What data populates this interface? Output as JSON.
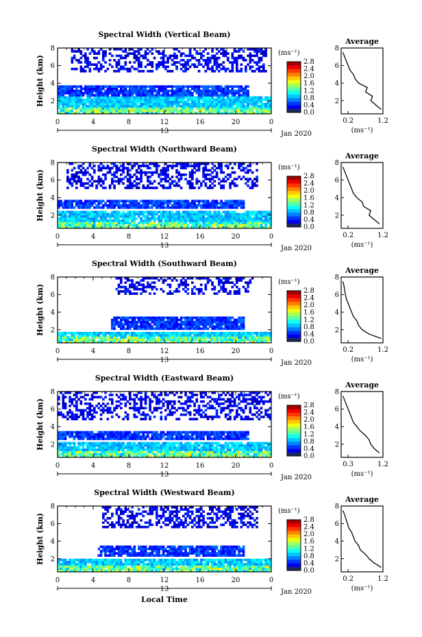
{
  "figure": {
    "xlabel": "Local Time",
    "date_label": "Jan 2020",
    "day_label": "13",
    "avg_title": "Average",
    "avg_xlabel": "(ms⁻¹)",
    "cbar_unit": "(ms⁻¹)"
  },
  "chart_data": [
    {
      "type": "heatmap",
      "title": "Spectral Width (Vertical Beam)",
      "ylabel": "Height (km)",
      "xlabel": "",
      "xlim": [
        0,
        24
      ],
      "ylim": [
        0.5,
        8
      ],
      "x_ticks": [
        "0",
        "4",
        "8",
        "12",
        "16",
        "20",
        "0"
      ],
      "y_ticks": [
        "2",
        "4",
        "6",
        "8"
      ],
      "colorbar": {
        "unit": "(ms⁻¹)",
        "range": [
          0,
          2.8
        ],
        "ticks": [
          "0.0",
          "0.4",
          "0.8",
          "1.2",
          "1.6",
          "2.0",
          "2.4",
          "2.8"
        ]
      },
      "layers": [
        {
          "name": "upper",
          "y": [
            5.2,
            8.0
          ],
          "x": [
            1.5,
            23.5
          ],
          "value": 0.3
        },
        {
          "name": "mid",
          "y": [
            2.5,
            3.8
          ],
          "x": [
            0,
            21.5
          ],
          "value": 0.5
        },
        {
          "name": "low",
          "y": [
            0.5,
            2.5
          ],
          "x": [
            0,
            24
          ],
          "value": 0.9
        }
      ],
      "profile": {
        "xlim": [
          0,
          1.2
        ],
        "xticks": [
          "0.2",
          "1.2"
        ],
        "yticks": [
          "2",
          "4",
          "6",
          "8"
        ],
        "height": [
          1.0,
          1.5,
          2.0,
          2.5,
          3.0,
          3.5,
          4.0,
          4.5,
          5.0,
          5.5,
          6.0,
          6.5,
          7.0,
          7.5
        ],
        "width": [
          1.15,
          1.0,
          0.85,
          0.9,
          0.7,
          0.75,
          0.5,
          0.4,
          0.35,
          0.25,
          0.2,
          0.15,
          0.1,
          0.05
        ]
      }
    },
    {
      "type": "heatmap",
      "title": "Spectral Width (Northward Beam)",
      "ylabel": "Height (km)",
      "xlabel": "",
      "xlim": [
        0,
        24
      ],
      "ylim": [
        0.5,
        8
      ],
      "x_ticks": [
        "0",
        "4",
        "8",
        "12",
        "16",
        "20",
        "0"
      ],
      "y_ticks": [
        "2",
        "4",
        "6",
        "8"
      ],
      "colorbar": {
        "unit": "(ms⁻¹)",
        "range": [
          0,
          2.8
        ],
        "ticks": [
          "0.0",
          "0.4",
          "0.8",
          "1.2",
          "1.6",
          "2.0",
          "2.4",
          "2.8"
        ]
      },
      "layers": [
        {
          "name": "upper",
          "y": [
            5.0,
            8.0
          ],
          "x": [
            1.0,
            22.5
          ],
          "value": 0.3
        },
        {
          "name": "mid",
          "y": [
            2.8,
            3.8
          ],
          "x": [
            0,
            21.0
          ],
          "value": 0.5
        },
        {
          "name": "low",
          "y": [
            0.5,
            2.5
          ],
          "x": [
            0,
            24
          ],
          "value": 0.9
        }
      ],
      "profile": {
        "xlim": [
          0,
          1.2
        ],
        "xticks": [
          "0.2",
          "1.2"
        ],
        "yticks": [
          "2",
          "4",
          "6",
          "8"
        ],
        "height": [
          1.0,
          1.5,
          2.0,
          2.5,
          3.0,
          3.5,
          4.0,
          4.5,
          5.0,
          5.5,
          6.0,
          6.5,
          7.0,
          7.5
        ],
        "width": [
          1.1,
          0.95,
          0.8,
          0.85,
          0.65,
          0.6,
          0.45,
          0.35,
          0.3,
          0.25,
          0.2,
          0.15,
          0.1,
          0.05
        ]
      }
    },
    {
      "type": "heatmap",
      "title": "Spectral Width (Southward Beam)",
      "ylabel": "Height (km)",
      "xlabel": "",
      "xlim": [
        0,
        24
      ],
      "ylim": [
        0.5,
        8
      ],
      "x_ticks": [
        "0",
        "4",
        "8",
        "12",
        "16",
        "20",
        "0"
      ],
      "y_ticks": [
        "2",
        "4",
        "6",
        "8"
      ],
      "colorbar": {
        "unit": "(ms⁻¹)",
        "range": [
          0,
          2.8
        ],
        "ticks": [
          "0.0",
          "0.4",
          "0.8",
          "1.2",
          "1.6",
          "2.0",
          "2.4",
          "2.8"
        ]
      },
      "layers": [
        {
          "name": "upper",
          "y": [
            6.0,
            8.0
          ],
          "x": [
            6.5,
            22.0
          ],
          "value": 0.3
        },
        {
          "name": "mid",
          "y": [
            2.0,
            3.5
          ],
          "x": [
            6.0,
            21.0
          ],
          "value": 0.5
        },
        {
          "name": "low",
          "y": [
            0.5,
            1.8
          ],
          "x": [
            0,
            24
          ],
          "value": 0.9
        }
      ],
      "profile": {
        "xlim": [
          0,
          1.2
        ],
        "xticks": [
          "0.2",
          "1.2"
        ],
        "yticks": [
          "2",
          "4",
          "6",
          "8"
        ],
        "height": [
          1.0,
          1.5,
          2.0,
          2.5,
          3.0,
          3.5,
          4.0,
          4.5,
          5.0,
          5.5,
          6.0,
          6.5,
          7.0,
          7.5
        ],
        "width": [
          1.15,
          0.8,
          0.6,
          0.5,
          0.45,
          0.35,
          0.3,
          0.25,
          0.2,
          0.15,
          0.12,
          0.1,
          0.08,
          0.05
        ]
      }
    },
    {
      "type": "heatmap",
      "title": "Spectral Width (Eastward Beam)",
      "ylabel": "Height (km)",
      "xlabel": "",
      "xlim": [
        0,
        24
      ],
      "ylim": [
        0.5,
        8
      ],
      "x_ticks": [
        "0",
        "4",
        "8",
        "12",
        "16",
        "20",
        "0"
      ],
      "y_ticks": [
        "2",
        "4",
        "6",
        "8"
      ],
      "colorbar": {
        "unit": "(ms⁻¹)",
        "range": [
          0,
          2.8
        ],
        "ticks": [
          "0.0",
          "0.4",
          "0.8",
          "1.2",
          "1.6",
          "2.0",
          "2.4",
          "2.8"
        ]
      },
      "layers": [
        {
          "name": "upper",
          "y": [
            4.8,
            8.0
          ],
          "x": [
            0,
            24
          ],
          "value": 0.3
        },
        {
          "name": "mid",
          "y": [
            2.5,
            3.5
          ],
          "x": [
            0,
            21.5
          ],
          "value": 0.5
        },
        {
          "name": "low",
          "y": [
            0.5,
            2.3
          ],
          "x": [
            0,
            24
          ],
          "value": 0.9
        }
      ],
      "profile": {
        "xlim": [
          0,
          1.2
        ],
        "xticks": [
          "0.3",
          "1.2"
        ],
        "yticks": [
          "2",
          "4",
          "6",
          "8"
        ],
        "height": [
          1.0,
          1.5,
          2.0,
          2.5,
          3.0,
          3.5,
          4.0,
          4.5,
          5.0,
          5.5,
          6.0,
          6.5,
          7.0,
          7.5
        ],
        "width": [
          1.1,
          0.95,
          0.85,
          0.8,
          0.7,
          0.55,
          0.45,
          0.35,
          0.3,
          0.25,
          0.2,
          0.15,
          0.1,
          0.05
        ]
      }
    },
    {
      "type": "heatmap",
      "title": "Spectral Width (Westward Beam)",
      "ylabel": "Height (km)",
      "xlabel": "Local Time",
      "xlim": [
        0,
        24
      ],
      "ylim": [
        0.5,
        8
      ],
      "x_ticks": [
        "0",
        "4",
        "8",
        "12",
        "16",
        "20",
        "0"
      ],
      "y_ticks": [
        "2",
        "4",
        "6",
        "8"
      ],
      "colorbar": {
        "unit": "(ms⁻¹)",
        "range": [
          0,
          2.8
        ],
        "ticks": [
          "0.0",
          "0.4",
          "0.8",
          "1.2",
          "1.6",
          "2.0",
          "2.4",
          "2.8"
        ]
      },
      "layers": [
        {
          "name": "upper",
          "y": [
            5.5,
            8.0
          ],
          "x": [
            5.0,
            22.5
          ],
          "value": 0.3
        },
        {
          "name": "mid",
          "y": [
            2.2,
            3.5
          ],
          "x": [
            4.5,
            21.0
          ],
          "value": 0.5
        },
        {
          "name": "low",
          "y": [
            0.5,
            2.0
          ],
          "x": [
            0,
            24
          ],
          "value": 0.9
        }
      ],
      "profile": {
        "xlim": [
          0,
          1.2
        ],
        "xticks": [
          "0.2",
          "1.2"
        ],
        "yticks": [
          "2",
          "4",
          "6",
          "8"
        ],
        "height": [
          1.0,
          1.5,
          2.0,
          2.5,
          3.0,
          3.5,
          4.0,
          4.5,
          5.0,
          5.5,
          6.0,
          6.5,
          7.0,
          7.5
        ],
        "width": [
          1.15,
          0.95,
          0.8,
          0.7,
          0.55,
          0.5,
          0.4,
          0.35,
          0.3,
          0.22,
          0.18,
          0.14,
          0.1,
          0.05
        ]
      }
    }
  ]
}
